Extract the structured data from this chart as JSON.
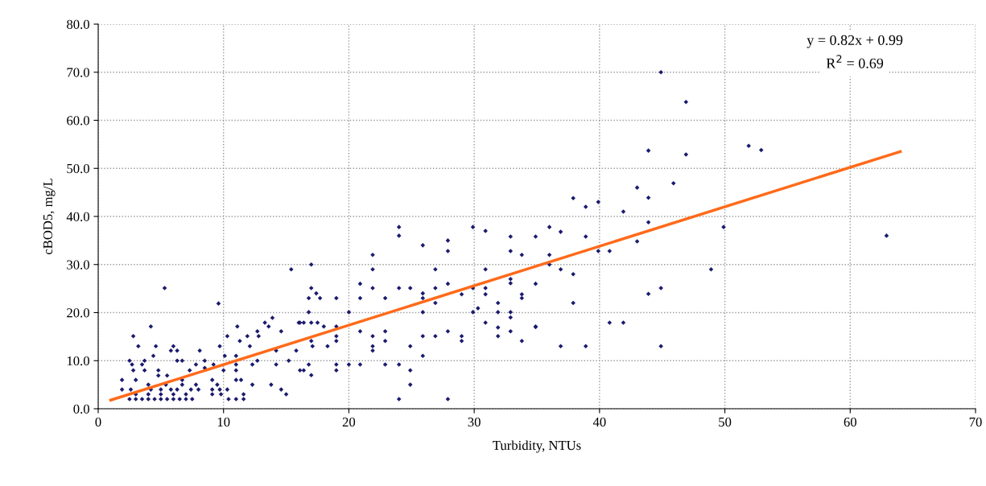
{
  "chart_data": {
    "type": "scatter",
    "xlabel": "Turbidity, NTUs",
    "ylabel": "cBOD5, mg/L",
    "annotations": [
      "y = 0.82x + 0.99",
      "R$^{2}$ = 0.69"
    ],
    "xlim": [
      0,
      70
    ],
    "xticks": [
      0,
      10,
      20,
      30,
      40,
      50,
      60,
      70
    ],
    "ylim": [
      0,
      80
    ],
    "yticks": [
      {
        "value": 0,
        "label": "0.0"
      },
      {
        "value": 10,
        "label": "10.0"
      },
      {
        "value": 20,
        "label": "20.0"
      },
      {
        "value": 30,
        "label": "30.0"
      },
      {
        "value": 40,
        "label": "40.0"
      },
      {
        "value": 50,
        "label": "50.0"
      },
      {
        "value": 60,
        "label": "60.0"
      },
      {
        "value": 70,
        "label": "70.0"
      },
      {
        "value": 80,
        "label": "80.0"
      }
    ],
    "grid": true,
    "marker": "diamond",
    "series": [
      {
        "color": "#1a1a6e",
        "x": [
          44.9,
          46.9,
          43.9,
          46.9,
          51.9,
          52.9,
          45.9,
          43,
          43.9,
          37.9,
          39.9,
          38.9,
          41.9,
          43.9,
          34.9,
          36,
          36.9,
          38.9,
          43,
          39.9,
          40.8,
          36,
          36,
          36.9,
          37.9,
          34.9,
          37.9,
          34.9,
          36.9,
          38.9,
          40.8,
          41.9,
          43.9,
          44.9,
          44.9,
          48.9,
          49.9,
          62.9,
          24,
          24,
          29.9,
          30.9,
          32.9,
          25.9,
          27.9,
          27.9,
          32.9,
          33.8,
          21.9,
          17,
          21.9,
          26.9,
          30.9,
          32.9,
          32.9,
          20.9,
          27.9,
          26.9,
          24.9,
          24,
          21.9,
          17,
          29.9,
          30.9,
          30.9,
          29,
          25.9,
          25.9,
          33.8,
          33.8,
          26.9,
          16.8,
          17.4,
          17.7,
          19,
          20.9,
          22.9,
          16.8,
          20,
          25.9,
          29.9,
          30.3,
          31.9,
          31.9,
          32.9,
          32.9,
          30.9,
          31.9,
          34.9,
          31.9,
          32.9,
          33.8,
          16,
          16.4,
          17,
          17.5,
          18,
          19,
          19,
          19,
          17,
          17.1,
          18.3,
          20.9,
          21.9,
          21.9,
          21.9,
          22.9,
          22.9,
          24.9,
          25.9,
          25.9,
          26.9,
          27.9,
          29,
          29,
          16.8,
          17,
          16.4,
          19,
          19,
          20,
          20.9,
          22.9,
          24,
          24.9,
          24.9,
          24,
          27.9,
          15.4,
          5.3,
          9.6,
          13.3,
          13.9,
          13.6,
          16.1,
          4.2,
          11.1,
          12.7,
          2.8,
          10.3,
          11.9,
          12.8,
          14.6,
          3.2,
          4.6,
          6,
          9.7,
          11.3,
          12.1,
          14.2,
          4.4,
          5.8,
          6.3,
          8.1,
          2.5,
          3.7,
          6.3,
          6.7,
          8.5,
          10.1,
          11,
          12.7,
          15.2,
          2.7,
          3.5,
          7.8,
          9.2,
          11,
          12.3,
          14.2,
          15.8,
          2.8,
          3.7,
          4.8,
          7.3,
          8.5,
          10,
          11,
          16.1,
          3,
          4,
          4.8,
          5.5,
          6.7,
          7.8,
          9.1,
          9.5,
          11,
          11.4,
          12.3,
          13.8,
          14.6,
          15,
          1.9,
          1.9,
          2.6,
          4.2,
          5,
          5.8,
          6.3,
          6.7,
          7.4,
          8,
          9.1,
          9.7,
          10.3,
          9.1,
          9.8,
          10.4,
          11,
          11.6,
          11.6,
          5.4,
          2.5,
          3,
          3.5,
          4,
          4.5,
          5,
          5.5,
          6,
          6.5,
          7,
          7.5,
          3,
          4,
          5,
          6,
          7
        ],
        "values": [
          70,
          63.8,
          53.7,
          52.9,
          54.7,
          53.8,
          46.9,
          46,
          43.9,
          43.8,
          43,
          42,
          41,
          38.8,
          35.8,
          37.8,
          36.8,
          35.8,
          34.8,
          32.8,
          32.8,
          32,
          30,
          29,
          28,
          26,
          22,
          17,
          13,
          13,
          17.9,
          17.9,
          23.9,
          25.1,
          13,
          29,
          37.8,
          36,
          37.8,
          36,
          37.8,
          37,
          35.8,
          34,
          35,
          32.8,
          32.8,
          32,
          32,
          30,
          29,
          29,
          29,
          27,
          26.1,
          26,
          26,
          25.1,
          25.1,
          25.1,
          25.1,
          25.1,
          25.1,
          25.1,
          23.8,
          23.8,
          24,
          23,
          23.8,
          23,
          22,
          23,
          24,
          23,
          23,
          23,
          23,
          20.1,
          20.1,
          20.1,
          20.1,
          20.9,
          22,
          20.1,
          20.1,
          19,
          17.9,
          16.9,
          17.1,
          15.1,
          16.1,
          14.1,
          17.9,
          17.9,
          17.9,
          17.9,
          17.1,
          17.1,
          15.1,
          14.1,
          14.1,
          13,
          13,
          16.1,
          15.1,
          13,
          12.1,
          16.1,
          14.1,
          13,
          15.1,
          11,
          15.1,
          16.1,
          15.1,
          14.1,
          9.2,
          7,
          8,
          9.2,
          8,
          9.2,
          9.2,
          9.2,
          9.2,
          8,
          5,
          2,
          2,
          29,
          25.1,
          21.9,
          17.9,
          18.9,
          17.1,
          17.9,
          17.1,
          17.1,
          16.1,
          15.1,
          15.1,
          15.1,
          15.1,
          16.1,
          13,
          13,
          13,
          13,
          14.1,
          13,
          12.1,
          11,
          12.1,
          12.1,
          12.1,
          10,
          10,
          10,
          10,
          10,
          11,
          11,
          10,
          10,
          9.2,
          9.2,
          9.2,
          9.2,
          9.2,
          9.2,
          9.2,
          12.1,
          8,
          8,
          8,
          8,
          8.5,
          8,
          8,
          8,
          6,
          5,
          6.9,
          6.9,
          6,
          5,
          6,
          5,
          6,
          6,
          5,
          5,
          4,
          3,
          6,
          4,
          4,
          4,
          4,
          4,
          4,
          5,
          4,
          4,
          4,
          4,
          4,
          3,
          3,
          2,
          2,
          2,
          3,
          5,
          2,
          2,
          2,
          2,
          2,
          2,
          2,
          2,
          2,
          2,
          2,
          3,
          3,
          3,
          3,
          3
        ]
      },
      {
        "type": "line",
        "color": "#ff6a1a",
        "x": [
          1,
          64
        ],
        "values": [
          1.8,
          53.5
        ],
        "marker": "none"
      }
    ]
  }
}
